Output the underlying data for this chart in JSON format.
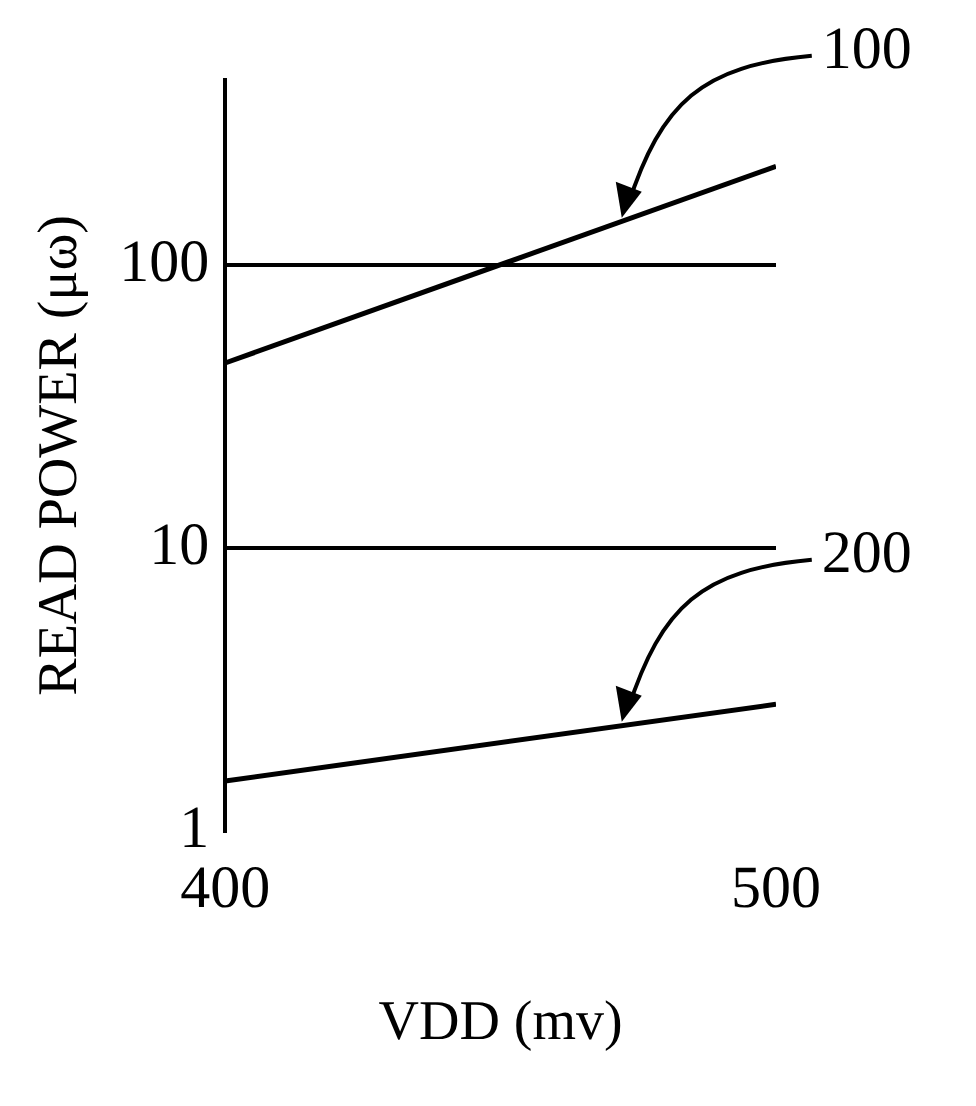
{
  "chart_data": {
    "type": "line",
    "xlabel": "VDD (mv)",
    "ylabel": "READ POWER (μω)",
    "x": [
      400,
      500
    ],
    "xlim": [
      400,
      500
    ],
    "xticks": [
      400,
      500
    ],
    "ylim": [
      1,
      450
    ],
    "yticks": [
      1,
      10,
      100
    ],
    "log": "y",
    "grid": "y",
    "legend": false,
    "marker": "none",
    "line_style": "solid",
    "series": [
      {
        "color": "#000000",
        "values": [
          45,
          223
        ]
      },
      {
        "color": "#000000",
        "values": [
          1.5,
          2.8
        ]
      }
    ],
    "annotations": [
      {
        "text": "100",
        "x": 472,
        "y": 142
      },
      {
        "text": "200",
        "x": 472,
        "y": 2.35
      }
    ]
  }
}
